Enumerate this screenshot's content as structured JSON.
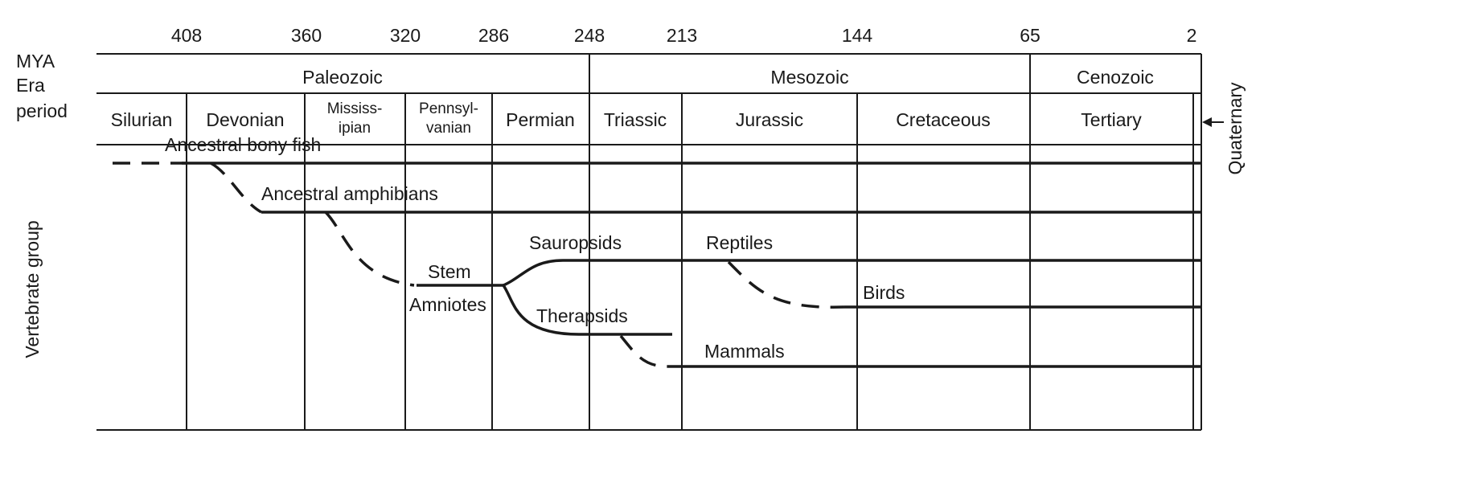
{
  "row_labels": {
    "mya": "MYA",
    "era": "Era",
    "period": "period",
    "y_axis": "Vertebrate group"
  },
  "mya_ticks": [
    "408",
    "360",
    "320",
    "286",
    "248",
    "213",
    "144",
    "65",
    "2"
  ],
  "eras": [
    "Paleozoic",
    "Mesozoic",
    "Cenozoic"
  ],
  "periods": {
    "silurian": "Silurian",
    "devonian": "Devonian",
    "mississippian_1": "Mississ-",
    "mississippian_2": "ipian",
    "pennsylvanian_1": "Pennsyl-",
    "pennsylvanian_2": "vanian",
    "permian": "Permian",
    "triassic": "Triassic",
    "jurassic": "Jurassic",
    "cretaceous": "Cretaceous",
    "tertiary": "Tertiary",
    "quaternary": "Quaternary"
  },
  "groups": {
    "fish": "Ancestral bony fish",
    "amphibians": "Ancestral amphibians",
    "stem_1": "Stem",
    "stem_2": "Amniotes",
    "sauropsids": "Sauropsids",
    "therapsids": "Therapsids",
    "reptiles": "Reptiles",
    "birds": "Birds",
    "mammals": "Mammals"
  }
}
